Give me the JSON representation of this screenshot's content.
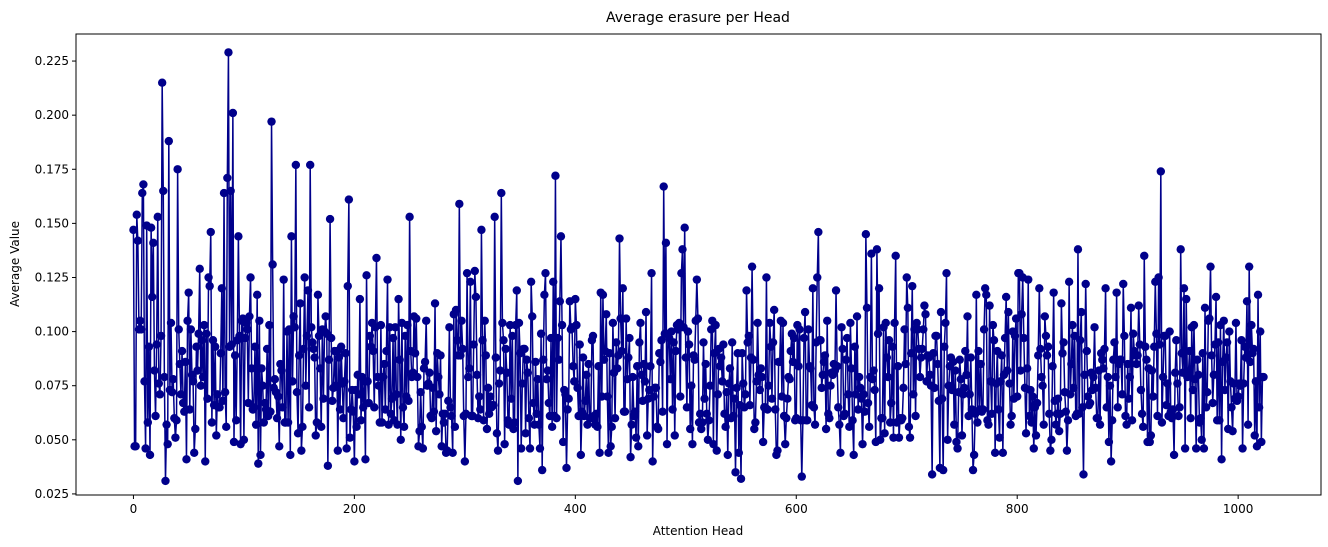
{
  "chart_data": {
    "type": "line",
    "title": "Average erasure per Head",
    "xlabel": "Attention Head",
    "ylabel": "Average Value",
    "xlim": [
      -52,
      1075
    ],
    "ylim": [
      0.0245,
      0.2375
    ],
    "xticks": [
      0,
      200,
      400,
      600,
      800,
      1000
    ],
    "yticks": [
      0.025,
      0.05,
      0.075,
      0.1,
      0.125,
      0.15,
      0.175,
      0.2,
      0.225
    ],
    "xtick_labels": [
      "0",
      "200",
      "400",
      "600",
      "800",
      "1000"
    ],
    "ytick_labels": [
      "0.025",
      "0.050",
      "0.075",
      "0.100",
      "0.125",
      "0.150",
      "0.175",
      "0.200",
      "0.225"
    ],
    "grid": false,
    "legend": "none",
    "color": "#00008b",
    "marker": "circle",
    "series": [
      {
        "n_points": 1024,
        "x_start": 0,
        "x_step": 1,
        "seed": 7,
        "base_value": 0.08,
        "spread": 0.025,
        "min_value": 0.031,
        "max_value": 0.229,
        "anchors": [
          [
            0,
            0.147
          ],
          [
            1,
            0.047
          ],
          [
            2,
            0.047
          ],
          [
            3,
            0.154
          ],
          [
            4,
            0.142
          ],
          [
            6,
            0.105
          ],
          [
            8,
            0.164
          ],
          [
            9,
            0.168
          ],
          [
            10,
            0.077
          ],
          [
            12,
            0.149
          ],
          [
            14,
            0.093
          ],
          [
            16,
            0.148
          ],
          [
            18,
            0.141
          ],
          [
            20,
            0.061
          ],
          [
            22,
            0.153
          ],
          [
            24,
            0.071
          ],
          [
            26,
            0.215
          ],
          [
            27,
            0.165
          ],
          [
            29,
            0.031
          ],
          [
            30,
            0.057
          ],
          [
            32,
            0.188
          ],
          [
            35,
            0.072
          ],
          [
            40,
            0.175
          ],
          [
            45,
            0.067
          ],
          [
            48,
            0.041
          ],
          [
            50,
            0.118
          ],
          [
            55,
            0.044
          ],
          [
            60,
            0.129
          ],
          [
            65,
            0.04
          ],
          [
            68,
            0.125
          ],
          [
            70,
            0.146
          ],
          [
            75,
            0.052
          ],
          [
            80,
            0.12
          ],
          [
            82,
            0.164
          ],
          [
            85,
            0.171
          ],
          [
            86,
            0.229
          ],
          [
            88,
            0.165
          ],
          [
            90,
            0.201
          ],
          [
            91,
            0.049
          ],
          [
            95,
            0.144
          ],
          [
            100,
            0.05
          ],
          [
            112,
            0.117
          ],
          [
            113,
            0.039
          ],
          [
            115,
            0.043
          ],
          [
            125,
            0.197
          ],
          [
            126,
            0.131
          ],
          [
            130,
            0.06
          ],
          [
            140,
            0.058
          ],
          [
            143,
            0.144
          ],
          [
            147,
            0.177
          ],
          [
            155,
            0.125
          ],
          [
            160,
            0.177
          ],
          [
            165,
            0.052
          ],
          [
            176,
            0.038
          ],
          [
            178,
            0.152
          ],
          [
            185,
            0.045
          ],
          [
            195,
            0.161
          ],
          [
            200,
            0.04
          ],
          [
            205,
            0.115
          ],
          [
            210,
            0.041
          ],
          [
            220,
            0.134
          ],
          [
            230,
            0.124
          ],
          [
            240,
            0.115
          ],
          [
            242,
            0.05
          ],
          [
            250,
            0.153
          ],
          [
            258,
            0.047
          ],
          [
            262,
            0.046
          ],
          [
            270,
            0.06
          ],
          [
            283,
            0.044
          ],
          [
            290,
            0.108
          ],
          [
            295,
            0.159
          ],
          [
            300,
            0.04
          ],
          [
            305,
            0.123
          ],
          [
            315,
            0.147
          ],
          [
            320,
            0.055
          ],
          [
            327,
            0.153
          ],
          [
            333,
            0.164
          ],
          [
            340,
            0.057
          ],
          [
            348,
            0.031
          ],
          [
            350,
            0.09
          ],
          [
            360,
            0.123
          ],
          [
            370,
            0.036
          ],
          [
            380,
            0.123
          ],
          [
            382,
            0.172
          ],
          [
            387,
            0.144
          ],
          [
            392,
            0.037
          ],
          [
            400,
            0.115
          ],
          [
            410,
            0.08
          ],
          [
            425,
            0.117
          ],
          [
            430,
            0.044
          ],
          [
            440,
            0.143
          ],
          [
            443,
            0.12
          ],
          [
            450,
            0.042
          ],
          [
            460,
            0.08
          ],
          [
            465,
            0.052
          ],
          [
            470,
            0.04
          ],
          [
            480,
            0.167
          ],
          [
            482,
            0.141
          ],
          [
            490,
            0.052
          ],
          [
            497,
            0.138
          ],
          [
            499,
            0.148
          ],
          [
            510,
            0.124
          ],
          [
            520,
            0.05
          ],
          [
            535,
            0.062
          ],
          [
            545,
            0.035
          ],
          [
            550,
            0.032
          ],
          [
            555,
            0.119
          ],
          [
            560,
            0.13
          ],
          [
            565,
            0.104
          ],
          [
            570,
            0.049
          ],
          [
            580,
            0.11
          ],
          [
            590,
            0.048
          ],
          [
            600,
            0.06
          ],
          [
            605,
            0.033
          ],
          [
            615,
            0.12
          ],
          [
            620,
            0.146
          ],
          [
            630,
            0.06
          ],
          [
            640,
            0.044
          ],
          [
            645,
            0.087
          ],
          [
            660,
            0.048
          ],
          [
            663,
            0.145
          ],
          [
            668,
            0.136
          ],
          [
            673,
            0.138
          ],
          [
            680,
            0.053
          ],
          [
            690,
            0.135
          ],
          [
            700,
            0.125
          ],
          [
            710,
            0.101
          ],
          [
            723,
            0.034
          ],
          [
            730,
            0.037
          ],
          [
            733,
            0.036
          ],
          [
            736,
            0.127
          ],
          [
            745,
            0.049
          ],
          [
            755,
            0.107
          ],
          [
            760,
            0.036
          ],
          [
            770,
            0.101
          ],
          [
            775,
            0.112
          ],
          [
            780,
            0.044
          ],
          [
            790,
            0.116
          ],
          [
            800,
            0.07
          ],
          [
            805,
            0.125
          ],
          [
            815,
            0.046
          ],
          [
            820,
            0.12
          ],
          [
            830,
            0.045
          ],
          [
            840,
            0.113
          ],
          [
            850,
            0.103
          ],
          [
            855,
            0.138
          ],
          [
            860,
            0.034
          ],
          [
            862,
            0.122
          ],
          [
            870,
            0.102
          ],
          [
            880,
            0.12
          ],
          [
            885,
            0.04
          ],
          [
            890,
            0.118
          ],
          [
            900,
            0.085
          ],
          [
            910,
            0.112
          ],
          [
            915,
            0.135
          ],
          [
            918,
            0.049
          ],
          [
            925,
            0.123
          ],
          [
            930,
            0.174
          ],
          [
            935,
            0.066
          ],
          [
            940,
            0.06
          ],
          [
            948,
            0.138
          ],
          [
            952,
            0.046
          ],
          [
            958,
            0.102
          ],
          [
            962,
            0.046
          ],
          [
            970,
            0.111
          ],
          [
            975,
            0.13
          ],
          [
            980,
            0.116
          ],
          [
            985,
            0.041
          ],
          [
            990,
            0.095
          ],
          [
            995,
            0.054
          ],
          [
            1000,
            0.07
          ],
          [
            1008,
            0.114
          ],
          [
            1010,
            0.13
          ],
          [
            1015,
            0.052
          ],
          [
            1017,
            0.047
          ],
          [
            1020,
            0.1
          ],
          [
            1022,
            0.079
          ],
          [
            1023,
            0.079
          ]
        ]
      }
    ]
  }
}
